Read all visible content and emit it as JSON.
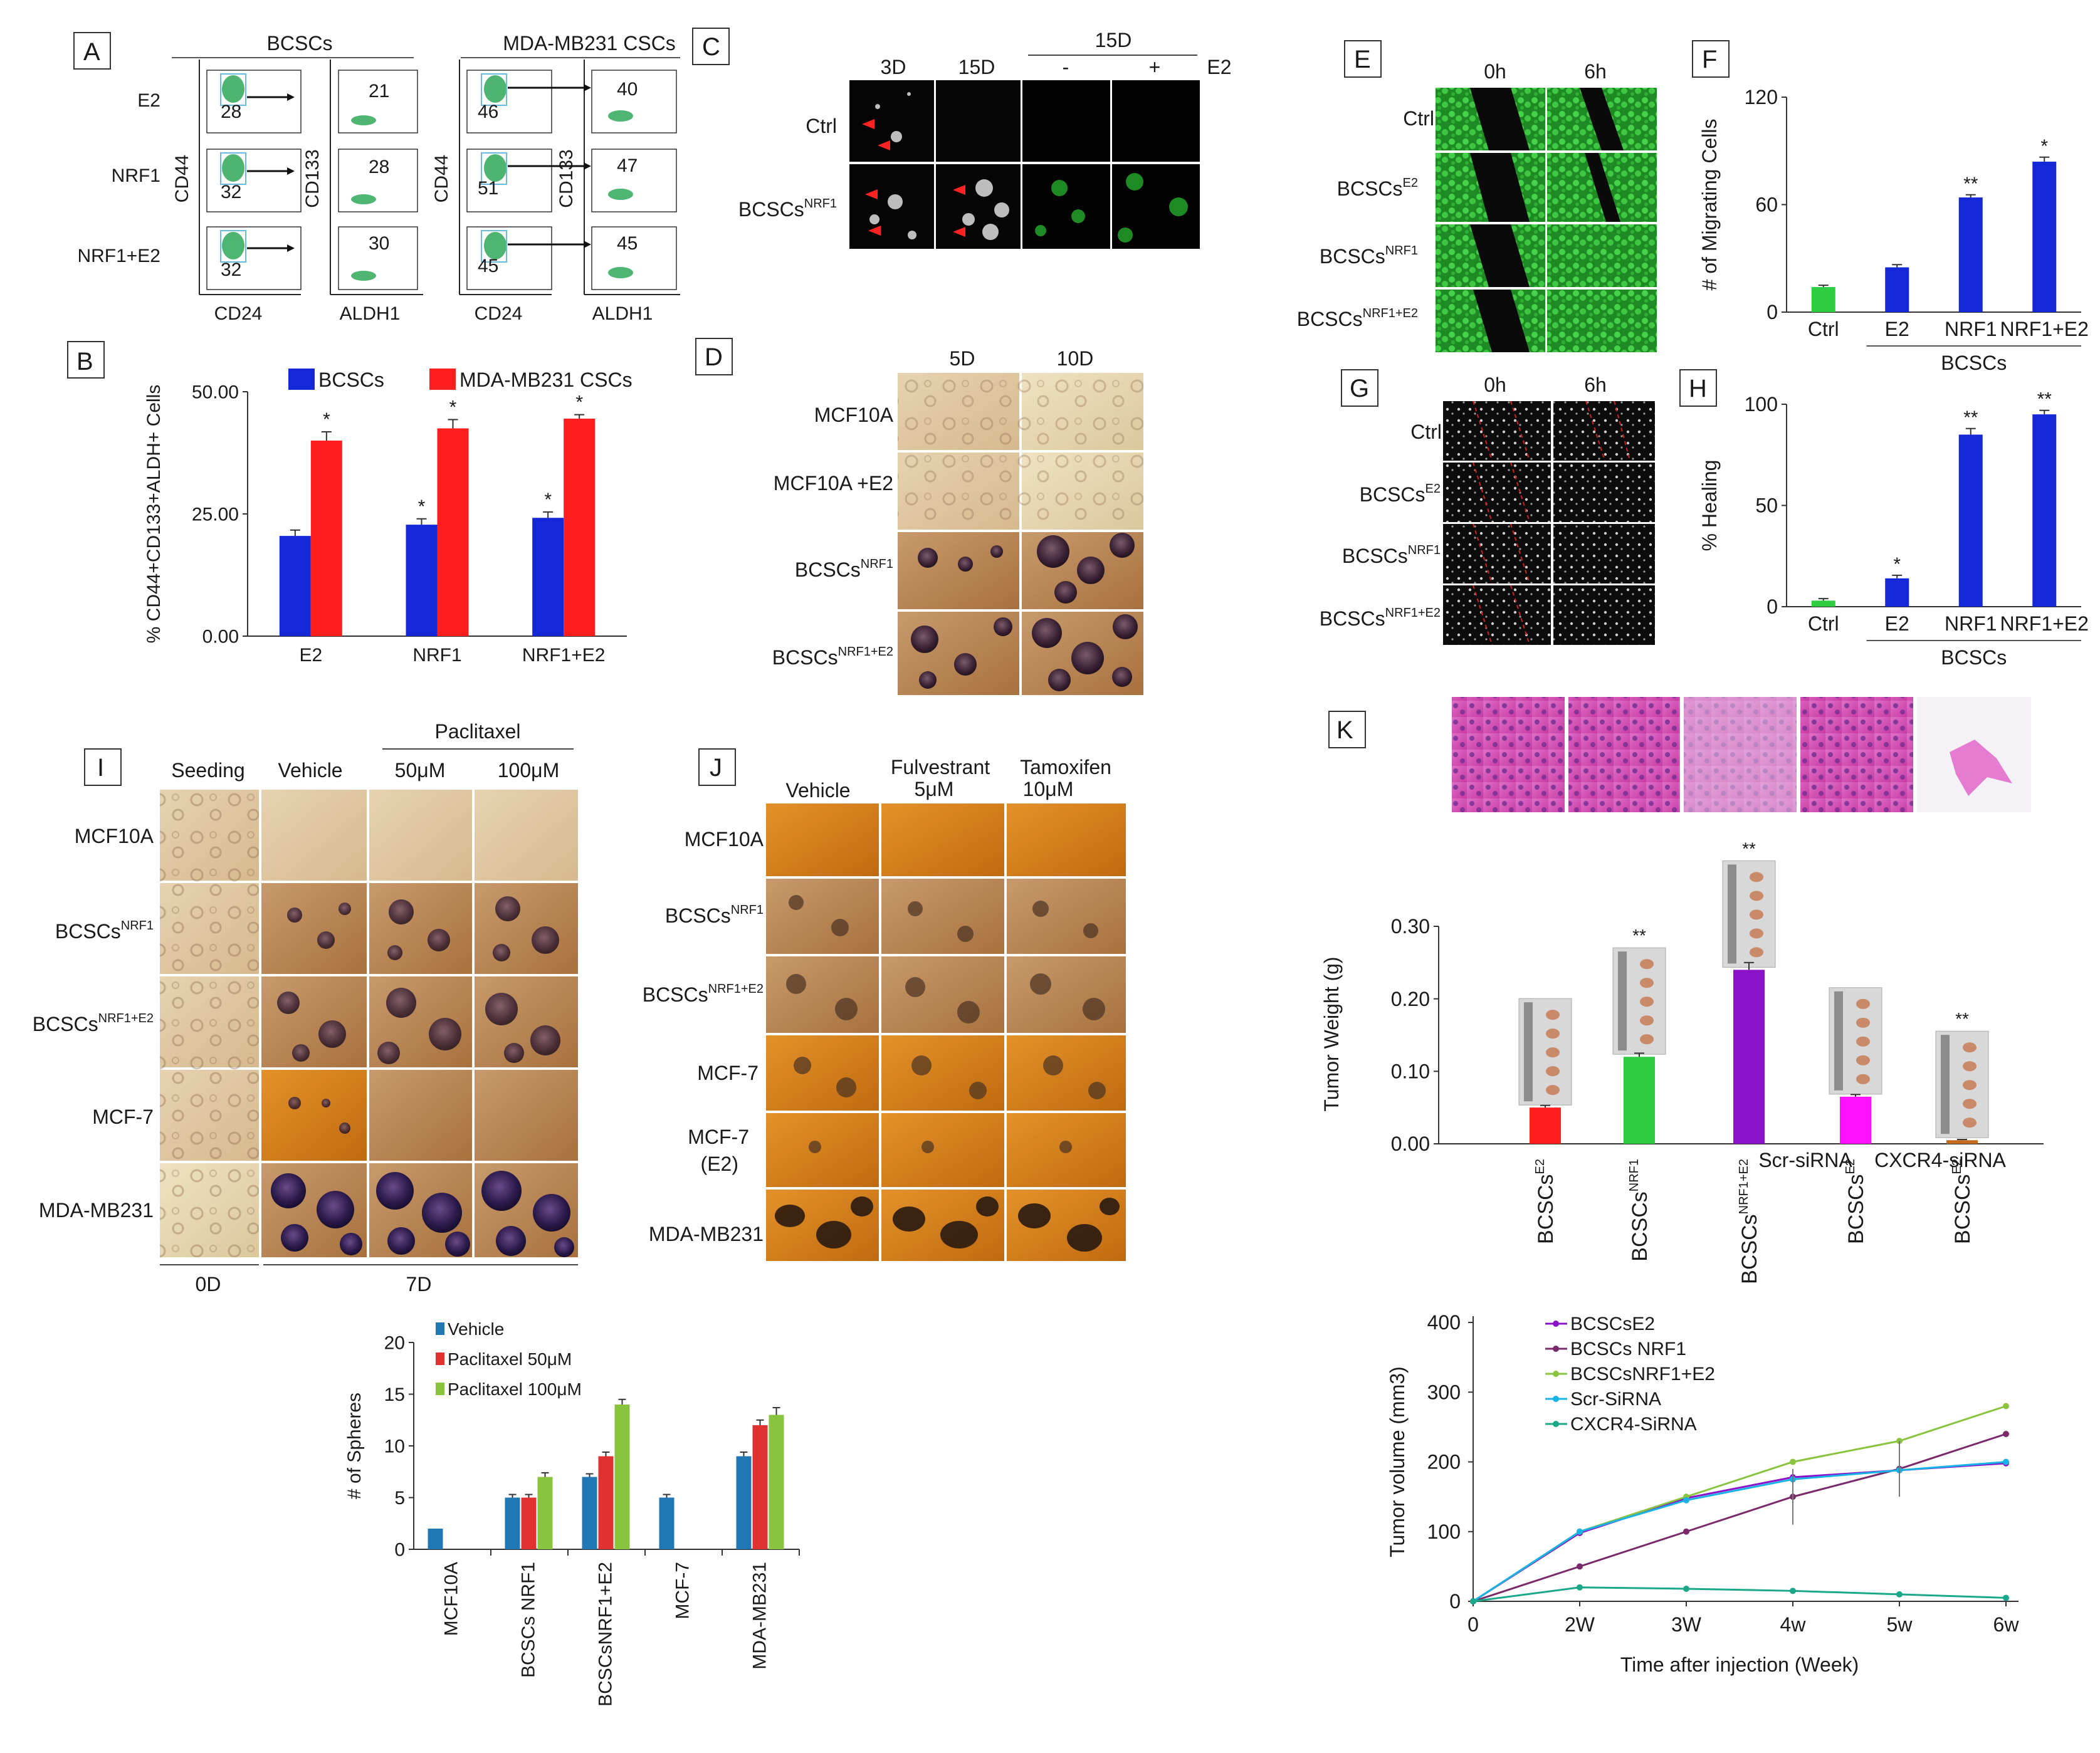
{
  "panel_letters": {
    "A": "A",
    "B": "B",
    "C": "C",
    "D": "D",
    "E": "E",
    "F": "F",
    "G": "G",
    "H": "H",
    "I": "I",
    "J": "J",
    "K": "K"
  },
  "colors": {
    "blue": "#1428d8",
    "red": "#ff1e1e",
    "green": "#2ecc40",
    "purple": "#8a13c9",
    "magenta": "#ff10ff",
    "orange": "#c56b1e",
    "dark": "#1a1a1a",
    "micro_green": "#1f8a2a",
    "he_pink": "#d43ca6"
  },
  "panel_a": {
    "group_bcscs": "BCSCs",
    "group_mda": "MDA-MB231 CSCs",
    "rows": [
      "E2",
      "NRF1",
      "NRF1+E2"
    ],
    "axis_cd44": "CD44",
    "axis_cd24": "CD24",
    "axis_cd133": "CD133",
    "axis_aldh1": "ALDH1",
    "bcscs_gate": [
      "28",
      "32",
      "32"
    ],
    "bcscs_aldh": [
      "21",
      "28",
      "30"
    ],
    "mda_gate": [
      "46",
      "51",
      "45"
    ],
    "mda_aldh": [
      "40",
      "47",
      "45"
    ]
  },
  "panel_c": {
    "col_3d": "3D",
    "col_15d": "15D",
    "col_15d_top": "15D",
    "minus": "-",
    "plus": "+",
    "e2": "E2",
    "row_ctrl": "Ctrl",
    "row_bcscs": "BCSCs",
    "row_bcscs_sup": "NRF1"
  },
  "panel_d": {
    "col_5d": "5D",
    "col_10d": "10D",
    "rows": [
      {
        "main": "MCF10A",
        "sup": ""
      },
      {
        "main": "MCF10A +E2",
        "sup": ""
      },
      {
        "main": "BCSCs",
        "sup": "NRF1"
      },
      {
        "main": "BCSCs",
        "sup": "NRF1+E2"
      }
    ]
  },
  "panel_e": {
    "col_0h": "0h",
    "col_6h": "6h",
    "rows": [
      {
        "main": "Ctrl",
        "sup": ""
      },
      {
        "main": "BCSCs",
        "sup": "E2"
      },
      {
        "main": "BCSCs",
        "sup": "NRF1"
      },
      {
        "main": "BCSCs",
        "sup": "NRF1+E2"
      }
    ]
  },
  "panel_g": {
    "col_0h": "0h",
    "col_6h": "6h",
    "rows": [
      {
        "main": "Ctrl",
        "sup": ""
      },
      {
        "main": "BCSCs",
        "sup": "E2"
      },
      {
        "main": "BCSCs",
        "sup": "NRF1"
      },
      {
        "main": "BCSCs",
        "sup": "NRF1+E2"
      }
    ]
  },
  "panel_i": {
    "col_seeding": "Seeding",
    "col_vehicle": "Vehicle",
    "group_paclitaxel": "Paclitaxel",
    "col_50": "50μM",
    "col_100": "100μM",
    "rows": [
      {
        "main": "MCF10A",
        "sup": ""
      },
      {
        "main": "BCSCs",
        "sup": "NRF1"
      },
      {
        "main": "BCSCs",
        "sup": "NRF1+E2"
      },
      {
        "main": "MCF-7",
        "sup": ""
      },
      {
        "main": "MDA-MB231",
        "sup": ""
      }
    ],
    "time_0d": "0D",
    "time_7d": "7D"
  },
  "panel_j": {
    "col_vehicle": "Vehicle",
    "col_fulv_1": "Fulvestrant",
    "col_fulv_2": "5μM",
    "col_tam_1": "Tamoxifen",
    "col_tam_2": "10μM",
    "rows": [
      {
        "main": "MCF10A",
        "sup": ""
      },
      {
        "main": "BCSCs",
        "sup": "NRF1"
      },
      {
        "main": "BCSCs",
        "sup": "NRF1+E2"
      },
      {
        "main": "MCF-7",
        "sup": ""
      },
      {
        "main": "MCF-7",
        "sup": ""
      },
      {
        "main": "MDA-MB231",
        "sup": ""
      }
    ],
    "row5_sub": "(E2)"
  },
  "panel_k": {
    "scr_label": "Scr-siRNA",
    "cxcr4_label": "CXCR4-siRNA"
  },
  "chart_data": [
    {
      "id": "B",
      "type": "bar",
      "title": "",
      "ylabel": "% CD44+CD133+ALDH+ Cells",
      "categories": [
        "E2",
        "NRF1",
        "NRF1+E2"
      ],
      "series": [
        {
          "name": "BCSCs",
          "color": "#1428d8",
          "values": [
            20.5,
            22.8,
            24.2
          ],
          "errors": [
            1.2,
            1.2,
            1.2
          ],
          "sig": [
            "",
            "*",
            "*"
          ]
        },
        {
          "name": "MDA-MB231 CSCs",
          "color": "#ff1e1e",
          "values": [
            40.0,
            42.5,
            44.5
          ],
          "errors": [
            1.8,
            1.8,
            0.8
          ],
          "sig": [
            "*",
            "*",
            "*"
          ]
        }
      ],
      "ylim": [
        0,
        50
      ],
      "yticks": [
        0,
        25,
        50
      ],
      "yticklabels": [
        "0.00",
        "25.00",
        "50.00"
      ]
    },
    {
      "id": "F",
      "type": "bar",
      "ylabel": "# of Migrating Cells",
      "categories": [
        "Ctrl",
        "E2",
        "NRF1",
        "NRF1+E2"
      ],
      "group_label": "BCSCs",
      "values": [
        14,
        25,
        64,
        84
      ],
      "errors": [
        1,
        1.5,
        1.5,
        2.5
      ],
      "colors": [
        "#2ecc40",
        "#1428d8",
        "#1428d8",
        "#1428d8"
      ],
      "sig": [
        "",
        "",
        "**",
        "*"
      ],
      "ylim": [
        0,
        120
      ],
      "yticks": [
        0,
        60,
        120
      ],
      "yticklabels": [
        "0",
        "60",
        "120"
      ]
    },
    {
      "id": "H",
      "type": "bar",
      "ylabel": "% Healing",
      "categories": [
        "Ctrl",
        "E2",
        "NRF1",
        "NRF1+E2"
      ],
      "group_label": "BCSCs",
      "values": [
        3,
        14,
        85,
        95
      ],
      "errors": [
        1,
        1.5,
        3,
        2
      ],
      "colors": [
        "#2ecc40",
        "#1428d8",
        "#1428d8",
        "#1428d8"
      ],
      "sig": [
        "",
        "*",
        "**",
        "**"
      ],
      "ylim": [
        0,
        100
      ],
      "yticks": [
        0,
        50,
        100
      ],
      "yticklabels": [
        "0",
        "50",
        "100"
      ]
    },
    {
      "id": "spheres",
      "type": "bar",
      "ylabel": "# of Spheres",
      "categories": [
        "MCF10A",
        "BCSCs NRF1",
        "BCSCsNRF1+E2",
        "MCF-7",
        "MDA-MB231"
      ],
      "series": [
        {
          "name": "Vehicle",
          "color": "#1f77b4",
          "values": [
            2,
            5,
            7,
            5,
            9
          ],
          "errors": [
            0,
            0.3,
            0.3,
            0.3,
            0.4
          ]
        },
        {
          "name": "Paclitaxel 50μM",
          "color": "#e03030",
          "values": [
            0,
            5,
            9,
            0,
            12
          ],
          "errors": [
            0,
            0.3,
            0.4,
            0,
            0.5
          ]
        },
        {
          "name": "Paclitaxel 100μM",
          "color": "#8ac43f",
          "values": [
            0,
            7,
            14,
            0,
            13
          ],
          "errors": [
            0,
            0.4,
            0.5,
            0,
            0.7
          ]
        }
      ],
      "ylim": [
        0,
        20
      ],
      "yticks": [
        0,
        5,
        10,
        15,
        20
      ],
      "yticklabels": [
        "0",
        "5",
        "10",
        "15",
        "20"
      ]
    },
    {
      "id": "K",
      "type": "bar",
      "ylabel": "Tumor Weight (g)",
      "categories": [
        {
          "main": "BCSCs",
          "sup": "E2",
          "pre": ""
        },
        {
          "main": "BCSCs",
          "sup": "NRF1",
          "pre": ""
        },
        {
          "main": "BCSCs",
          "sup": "NRF1+E2",
          "pre": ""
        },
        {
          "main": "BCSCs",
          "sup": "E2",
          "pre": "Scr-siRNA"
        },
        {
          "main": "BCSCs",
          "sup": "E2",
          "pre": "CXCR4-siRNA"
        }
      ],
      "values": [
        0.05,
        0.12,
        0.24,
        0.065,
        0.005
      ],
      "errors": [
        0.003,
        0.005,
        0.01,
        0.003,
        0.001
      ],
      "colors": [
        "#ff1e1e",
        "#2ecc40",
        "#8a13c9",
        "#ff10ff",
        "#c56b1e"
      ],
      "sig": [
        "",
        "**",
        "**",
        "",
        "**"
      ],
      "ylim": [
        0,
        0.3
      ],
      "yticks": [
        0,
        0.1,
        0.2,
        0.3
      ],
      "yticklabels": [
        "0.00",
        "0.10",
        "0.20",
        "0.30"
      ]
    },
    {
      "id": "tumor_volume",
      "type": "line",
      "xlabel": "Time after injection (Week)",
      "ylabel": "Tumor volume (mm3)",
      "x": [
        "0",
        "2W",
        "3W",
        "4w",
        "5w",
        "6w"
      ],
      "series": [
        {
          "name": "BCSCsE2",
          "color": "#8a13c9",
          "values": [
            0,
            98,
            148,
            178,
            188,
            198
          ]
        },
        {
          "name": "BCSCs NRF1",
          "color": "#7a2a6a",
          "values": [
            0,
            50,
            100,
            150,
            190,
            240
          ]
        },
        {
          "name": "BCSCsNRF1+E2",
          "color": "#8ac43f",
          "values": [
            0,
            100,
            150,
            200,
            230,
            280
          ]
        },
        {
          "name": "Scr-SiRNA",
          "color": "#17b2e6",
          "values": [
            0,
            100,
            145,
            175,
            188,
            200
          ]
        },
        {
          "name": "CXCR4-SiRNA",
          "color": "#1aa889",
          "values": [
            0,
            20,
            18,
            15,
            10,
            5
          ]
        }
      ],
      "ylim": [
        0,
        400
      ],
      "yticks": [
        0,
        100,
        200,
        300,
        400
      ]
    }
  ]
}
